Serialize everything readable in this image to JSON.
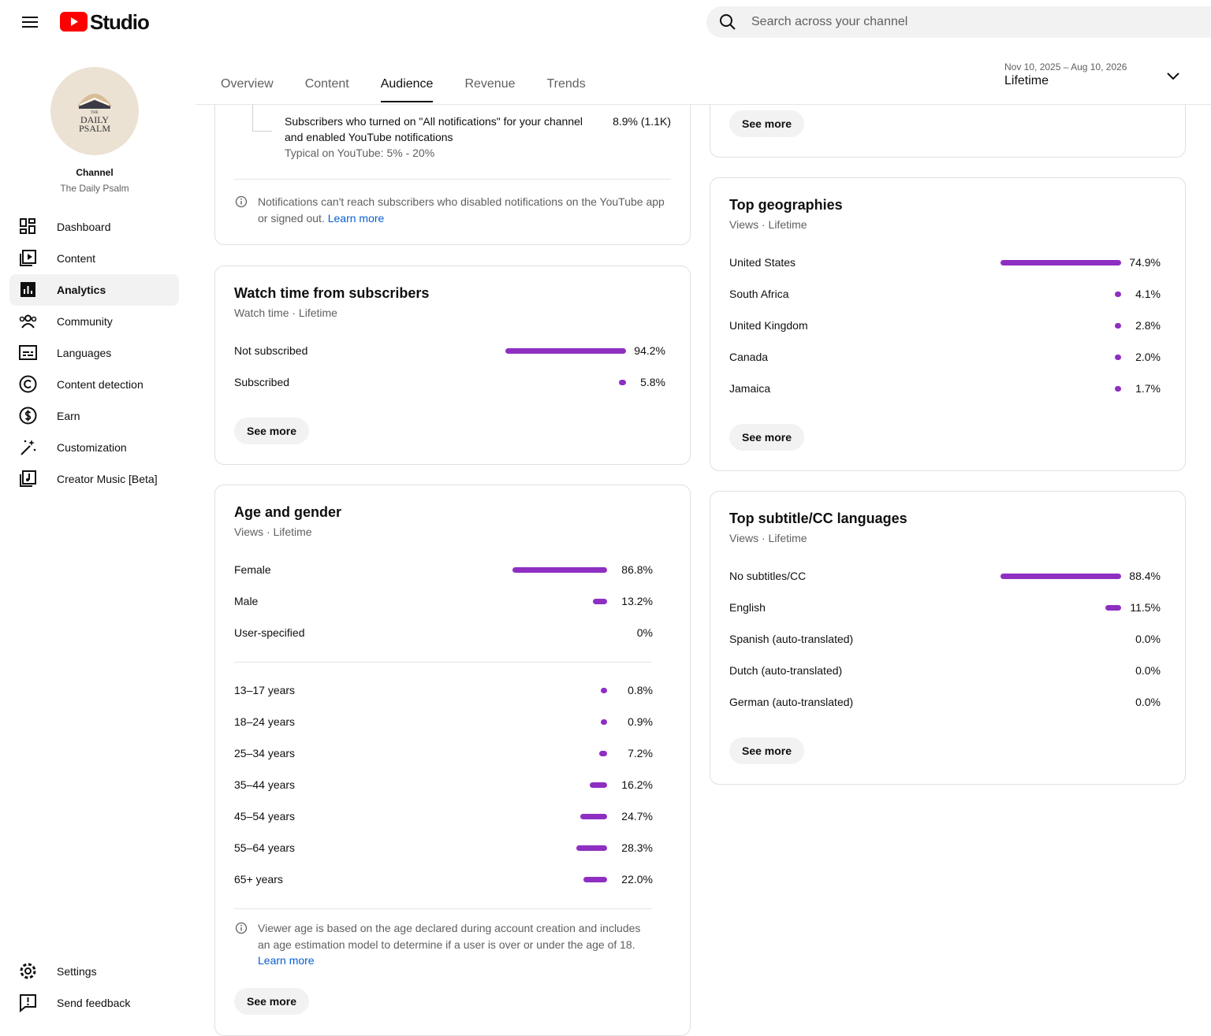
{
  "header": {
    "logo_text": "Studio",
    "search_placeholder": "Search across your channel"
  },
  "sidebar": {
    "avatar_lines": [
      "THE",
      "DAILY",
      "PSALM"
    ],
    "channel_label": "Channel",
    "channel_name": "The Daily Psalm",
    "nav": [
      "Dashboard",
      "Content",
      "Analytics",
      "Community",
      "Languages",
      "Content detection",
      "Earn",
      "Customization",
      "Creator Music [Beta]"
    ],
    "selected_nav": 2,
    "bottom_nav": [
      "Settings",
      "Send feedback"
    ]
  },
  "tabs": {
    "items": [
      "Overview",
      "Content",
      "Audience",
      "Revenue",
      "Trends"
    ],
    "selected": 2
  },
  "date_range": {
    "range": "Nov 10, 2025 – Aug 10, 2026",
    "period": "Lifetime"
  },
  "notifications": {
    "label_lines": [
      "Subscribers who turned on \"All notifications\" for your channel",
      "and enabled YouTube notifications"
    ],
    "typical": "Typical on YouTube: 5% - 20%",
    "value": "8.9% (1.1K)",
    "note": "Notifications can't reach subscribers who disabled notifications on the YouTube app or signed out.",
    "link": "Learn more"
  },
  "top_card": {
    "button": "See more"
  },
  "bar_color": "#8e2fc2",
  "watch_time": {
    "title": "Watch time from subscribers",
    "subtitle": "Watch time · Lifetime",
    "rows": {
      "categories": [
        "Not subscribed",
        "Subscribed"
      ],
      "values": [
        94.2,
        5.8
      ],
      "value_labels": [
        "94.2%",
        "5.8%"
      ]
    },
    "button": "See more"
  },
  "age_gender": {
    "title": "Age and gender",
    "subtitle": "Views · Lifetime",
    "gender": {
      "categories": [
        "Female",
        "Male",
        "User-specified"
      ],
      "values": [
        86.8,
        13.2,
        0
      ],
      "value_labels": [
        "86.8%",
        "13.2%",
        "0%"
      ]
    },
    "age": {
      "categories": [
        "13–17 years",
        "18–24 years",
        "25–34 years",
        "35–44 years",
        "45–54 years",
        "55–64 years",
        "65+ years"
      ],
      "values": [
        0.8,
        0.9,
        7.2,
        16.2,
        24.7,
        28.3,
        22.0
      ],
      "value_labels": [
        "0.8%",
        "0.9%",
        "7.2%",
        "16.2%",
        "24.7%",
        "28.3%",
        "22.0%"
      ]
    },
    "note": "Viewer age is based on the age declared during account creation and includes an age estimation model to determine if a user is over or under the age of 18.",
    "link": "Learn more",
    "button": "See more"
  },
  "geographies": {
    "title": "Top geographies",
    "subtitle": "Views · Lifetime",
    "rows": {
      "categories": [
        "United States",
        "South Africa",
        "United Kingdom",
        "Canada",
        "Jamaica"
      ],
      "values": [
        74.9,
        4.1,
        2.8,
        2.0,
        1.7
      ],
      "value_labels": [
        "74.9%",
        "4.1%",
        "2.8%",
        "2.0%",
        "1.7%"
      ]
    },
    "button": "See more"
  },
  "subtitles": {
    "title": "Top subtitle/CC languages",
    "subtitle": "Views · Lifetime",
    "rows": {
      "categories": [
        "No subtitles/CC",
        "English",
        "Spanish (auto-translated)",
        "Dutch (auto-translated)",
        "German (auto-translated)"
      ],
      "values": [
        88.4,
        11.5,
        0.0,
        0.0,
        0.0
      ],
      "value_labels": [
        "88.4%",
        "11.5%",
        "0.0%",
        "0.0%",
        "0.0%"
      ]
    },
    "button": "See more"
  }
}
